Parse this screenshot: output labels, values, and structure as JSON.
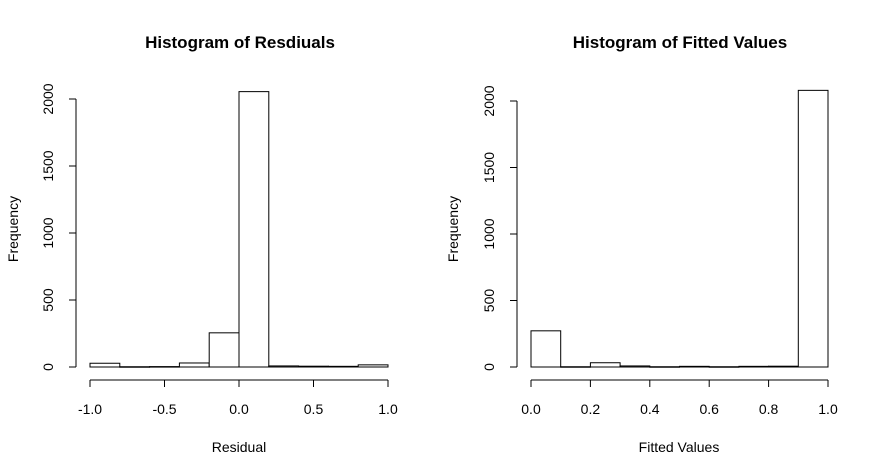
{
  "chart_data": [
    {
      "type": "bar",
      "title": "Histogram of Resdiuals",
      "xlabel": "Residual",
      "ylabel": "Frequency",
      "xlim": [
        -1.0,
        1.0
      ],
      "ylim": [
        0,
        2000
      ],
      "x_ticks": [
        -1.0,
        -0.5,
        0.0,
        0.5,
        1.0
      ],
      "x_tick_labels": [
        "-1.0",
        "-0.5",
        "0.0",
        "0.5",
        "1.0"
      ],
      "y_ticks": [
        0,
        500,
        1000,
        1500,
        2000
      ],
      "y_tick_labels": [
        "0",
        "500",
        "1000",
        "1500",
        "2000"
      ],
      "bins": [
        {
          "start": -1.0,
          "end": -0.8,
          "count": 28
        },
        {
          "start": -0.8,
          "end": -0.6,
          "count": 2
        },
        {
          "start": -0.6,
          "end": -0.4,
          "count": 3
        },
        {
          "start": -0.4,
          "end": -0.2,
          "count": 30
        },
        {
          "start": -0.2,
          "end": 0.0,
          "count": 255
        },
        {
          "start": 0.0,
          "end": 0.2,
          "count": 2055
        },
        {
          "start": 0.2,
          "end": 0.4,
          "count": 8
        },
        {
          "start": 0.4,
          "end": 0.6,
          "count": 6
        },
        {
          "start": 0.6,
          "end": 0.8,
          "count": 5
        },
        {
          "start": 0.8,
          "end": 1.0,
          "count": 16
        }
      ]
    },
    {
      "type": "bar",
      "title": "Histogram of Fitted Values",
      "xlabel": "Fitted Values",
      "ylabel": "Frequency",
      "xlim": [
        0.0,
        1.0
      ],
      "ylim": [
        0,
        2000
      ],
      "x_ticks": [
        0.0,
        0.2,
        0.4,
        0.6,
        0.8,
        1.0
      ],
      "x_tick_labels": [
        "0.0",
        "0.2",
        "0.4",
        "0.6",
        "0.8",
        "1.0"
      ],
      "y_ticks": [
        0,
        500,
        1000,
        1500,
        2000
      ],
      "y_tick_labels": [
        "0",
        "500",
        "1000",
        "1500",
        "2000"
      ],
      "bins": [
        {
          "start": 0.0,
          "end": 0.1,
          "count": 272
        },
        {
          "start": 0.1,
          "end": 0.2,
          "count": 2
        },
        {
          "start": 0.2,
          "end": 0.3,
          "count": 32
        },
        {
          "start": 0.3,
          "end": 0.4,
          "count": 8
        },
        {
          "start": 0.4,
          "end": 0.5,
          "count": 2
        },
        {
          "start": 0.5,
          "end": 0.6,
          "count": 5
        },
        {
          "start": 0.6,
          "end": 0.7,
          "count": 2
        },
        {
          "start": 0.7,
          "end": 0.8,
          "count": 5
        },
        {
          "start": 0.8,
          "end": 0.9,
          "count": 6
        },
        {
          "start": 0.9,
          "end": 1.0,
          "count": 2080
        }
      ]
    }
  ]
}
